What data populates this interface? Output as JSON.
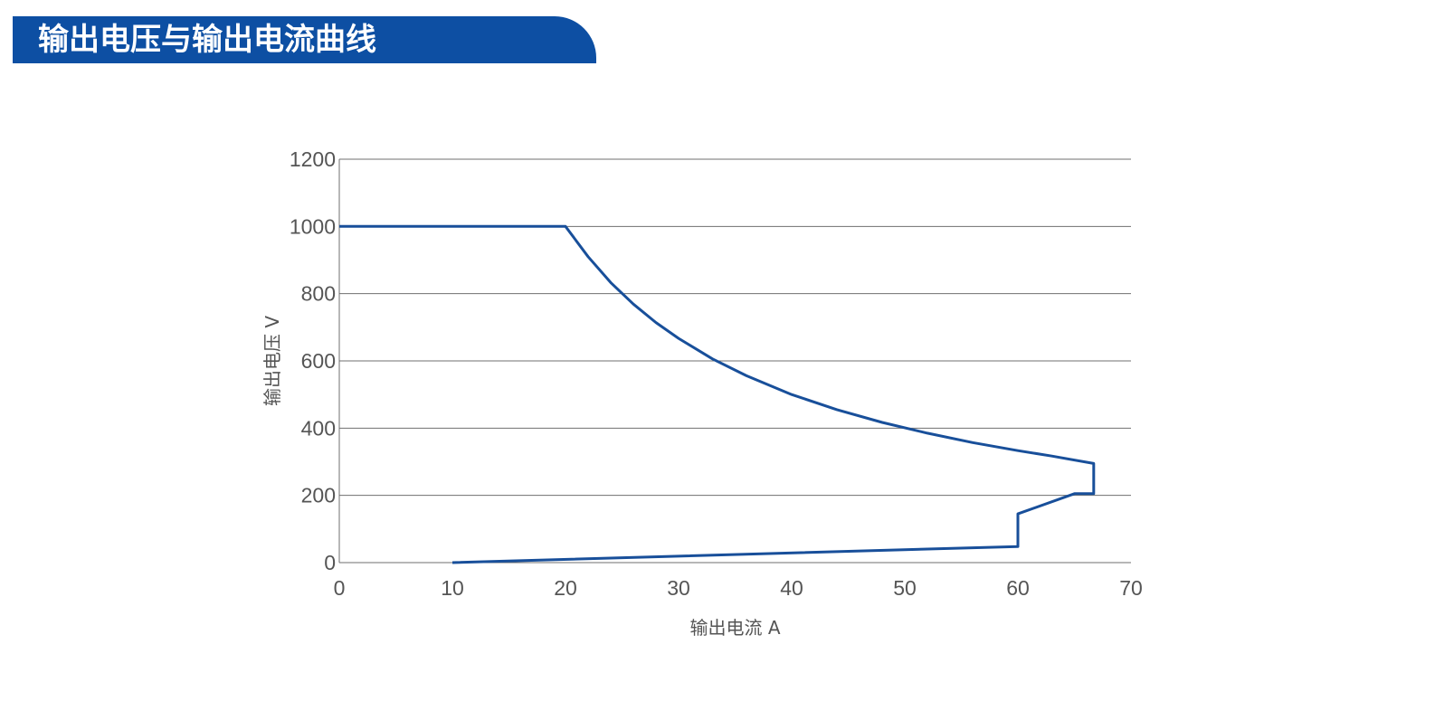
{
  "header": {
    "title": "输出电压与输出电流曲线"
  },
  "colors": {
    "banner": "#0d4fa3",
    "curve": "#184f9a",
    "grid": "#6f6f6f",
    "text": "#555555"
  },
  "chart_data": {
    "type": "line",
    "title": "",
    "xlabel": "输出电流  A",
    "ylabel": "输出电压  V",
    "xlim": [
      0,
      70
    ],
    "ylim": [
      0,
      1200
    ],
    "x_ticks": [
      0,
      10,
      20,
      30,
      40,
      50,
      60,
      70
    ],
    "y_ticks": [
      0,
      200,
      400,
      600,
      800,
      1000,
      1200
    ],
    "grid": "horizontal",
    "series": [
      {
        "points": [
          [
            0,
            1000
          ],
          [
            20,
            1000
          ],
          [
            22,
            910
          ],
          [
            24,
            833
          ],
          [
            26,
            769
          ],
          [
            28,
            714
          ],
          [
            30,
            667
          ],
          [
            33,
            606
          ],
          [
            36,
            556
          ],
          [
            40,
            500
          ],
          [
            44,
            455
          ],
          [
            48,
            417
          ],
          [
            52,
            385
          ],
          [
            56,
            357
          ],
          [
            60,
            333
          ],
          [
            63,
            317
          ],
          [
            66.7,
            295
          ],
          [
            66.7,
            205
          ],
          [
            65,
            205
          ],
          [
            60,
            145
          ],
          [
            60,
            48
          ],
          [
            10,
            0
          ]
        ]
      }
    ]
  }
}
